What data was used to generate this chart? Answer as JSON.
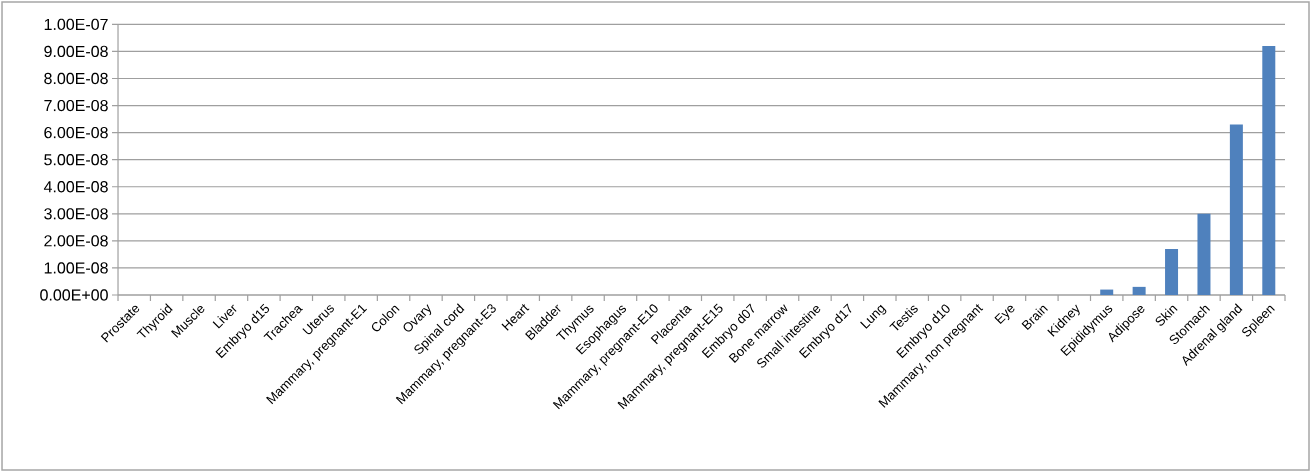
{
  "chart_data": {
    "type": "bar",
    "categories": [
      "Prostate",
      "Thyroid",
      "Muscle",
      "Liver",
      "Embryo d15",
      "Trachea",
      "Uterus",
      "Mammary, pregnant-E1",
      "Colon",
      "Ovary",
      "Spinal cord",
      "Mammary, pregnant-E3",
      "Heart",
      "Bladder",
      "Thymus",
      "Esophagus",
      "Mammary, pregnant-E10",
      "Placenta",
      "Mammary, pregnant-E15",
      "Embryo d07",
      "Bone marrow",
      "Small intestine",
      "Embryo d17",
      "Lung",
      "Testis",
      "Embryo d10",
      "Mammary, non pregnant",
      "Eye",
      "Brain",
      "Kidney",
      "Epididymus",
      "Adipose",
      "Skin",
      "Stomach",
      "Adrenal gland",
      "Spleen"
    ],
    "values": [
      0,
      0,
      0,
      0,
      0,
      0,
      0,
      0,
      0,
      0,
      0,
      0,
      0,
      0,
      0,
      0,
      0,
      0,
      0,
      0,
      0,
      0,
      0,
      0,
      0,
      0,
      0,
      0,
      0,
      0,
      2e-09,
      3e-09,
      1.7e-08,
      3e-08,
      6.3e-08,
      9.2e-08
    ],
    "color": "#4f81bd",
    "ylim": [
      0,
      1e-07
    ],
    "yticks": [
      {
        "value": 0,
        "label": "0.00E+00"
      },
      {
        "value": 1e-08,
        "label": "1.00E-08"
      },
      {
        "value": 2e-08,
        "label": "2.00E-08"
      },
      {
        "value": 3e-08,
        "label": "3.00E-08"
      },
      {
        "value": 4e-08,
        "label": "4.00E-08"
      },
      {
        "value": 5e-08,
        "label": "5.00E-08"
      },
      {
        "value": 6e-08,
        "label": "6.00E-08"
      },
      {
        "value": 7e-08,
        "label": "7.00E-08"
      },
      {
        "value": 8e-08,
        "label": "8.00E-08"
      },
      {
        "value": 9e-08,
        "label": "9.00E-08"
      },
      {
        "value": 1e-07,
        "label": "1.00E-07"
      }
    ],
    "grid": "y"
  }
}
